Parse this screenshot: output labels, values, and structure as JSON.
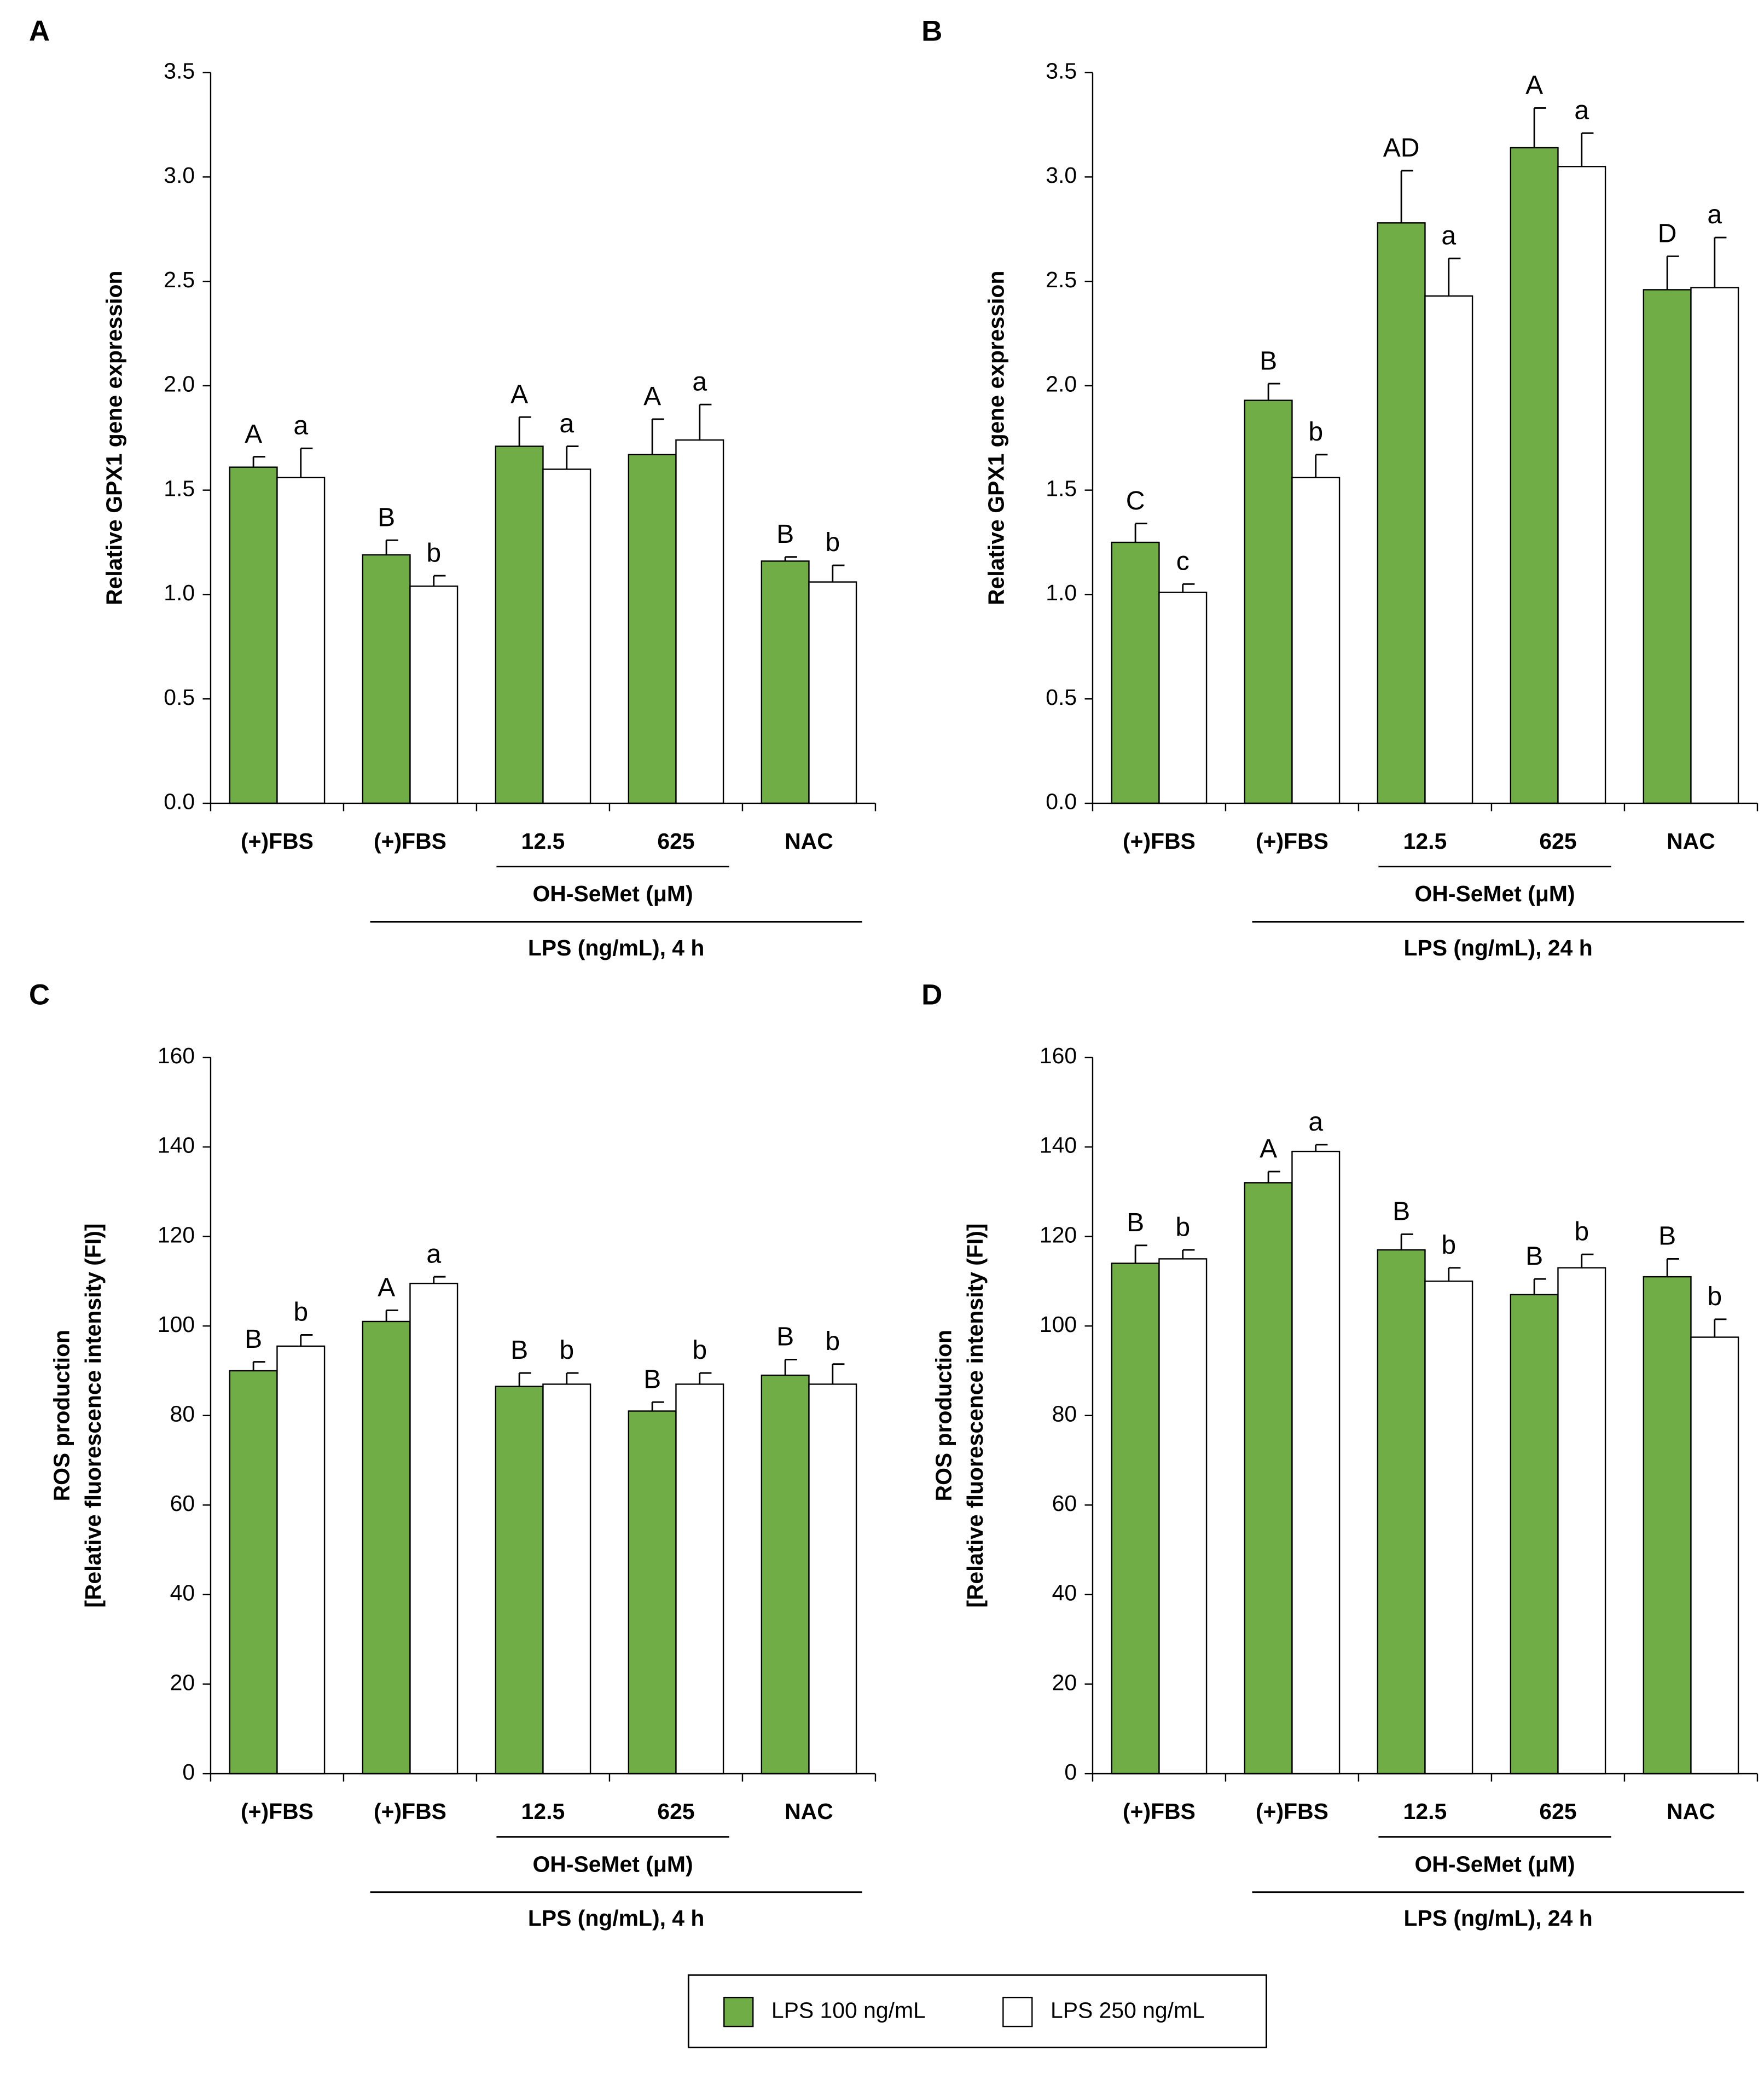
{
  "chart_data": [
    {
      "type": "bar",
      "panel": "A",
      "ylabel": [
        "Relative GPX1 gene expression"
      ],
      "categories": [
        "(+)FBS",
        "(+)FBS",
        "12.5",
        "625",
        "NAC"
      ],
      "group_label": "OH-SeMet (μM)",
      "treatment_label": "LPS (ng/mL), 4 h",
      "series": [
        {
          "name": "LPS 100 ng/mL",
          "color": "#70ad47",
          "values": [
            1.61,
            1.19,
            1.71,
            1.67,
            1.16
          ],
          "errors": [
            0.05,
            0.07,
            0.14,
            0.17,
            0.02
          ],
          "letters": [
            "A",
            "B",
            "A",
            "A",
            "B"
          ]
        },
        {
          "name": "LPS 250 ng/mL",
          "color": "#ffffff",
          "values": [
            1.56,
            1.04,
            1.6,
            1.74,
            1.06
          ],
          "errors": [
            0.14,
            0.05,
            0.11,
            0.17,
            0.08
          ],
          "letters": [
            "a",
            "b",
            "a",
            "a",
            "b"
          ]
        }
      ],
      "ylim": [
        0,
        3.5
      ],
      "yticks": [
        {
          "value": 0,
          "label": "0.0"
        },
        0.5,
        {
          "value": 1,
          "label": "1.0"
        },
        1.5,
        {
          "value": 2,
          "label": "2.0"
        },
        2.5,
        {
          "value": 3,
          "label": "3.0"
        },
        3.5
      ]
    },
    {
      "type": "bar",
      "panel": "B",
      "ylabel": [
        "Relative GPX1 gene expression"
      ],
      "categories": [
        "(+)FBS",
        "(+)FBS",
        "12.5",
        "625",
        "NAC"
      ],
      "group_label": "OH-SeMet (μM)",
      "treatment_label": "LPS (ng/mL), 24 h",
      "series": [
        {
          "name": "LPS 100 ng/mL",
          "color": "#70ad47",
          "values": [
            1.25,
            1.93,
            2.78,
            3.14,
            2.46
          ],
          "errors": [
            0.09,
            0.08,
            0.25,
            0.19,
            0.16
          ],
          "letters": [
            "C",
            "B",
            "AD",
            "A",
            "D"
          ]
        },
        {
          "name": "LPS 250 ng/mL",
          "color": "#ffffff",
          "values": [
            1.01,
            1.56,
            2.43,
            3.05,
            2.47
          ],
          "errors": [
            0.04,
            0.11,
            0.18,
            0.16,
            0.24
          ],
          "letters": [
            "c",
            "b",
            "a",
            "a",
            "a"
          ]
        }
      ],
      "ylim": [
        0,
        3.5
      ],
      "yticks": [
        {
          "value": 0,
          "label": "0.0"
        },
        0.5,
        {
          "value": 1,
          "label": "1.0"
        },
        1.5,
        {
          "value": 2,
          "label": "2.0"
        },
        2.5,
        {
          "value": 3,
          "label": "3.0"
        },
        3.5
      ]
    },
    {
      "type": "bar",
      "panel": "C",
      "ylabel": [
        "ROS production",
        "[Relative fluorescence intensity (FI)]"
      ],
      "categories": [
        "(+)FBS",
        "(+)FBS",
        "12.5",
        "625",
        "NAC"
      ],
      "group_label": "OH-SeMet (μM)",
      "treatment_label": "LPS (ng/mL), 4 h",
      "series": [
        {
          "name": "LPS 100 ng/mL",
          "color": "#70ad47",
          "values": [
            90,
            101,
            86.5,
            81,
            89
          ],
          "errors": [
            2,
            2.5,
            3,
            2,
            3.5
          ],
          "letters": [
            "B",
            "A",
            "B",
            "B",
            "B"
          ]
        },
        {
          "name": "LPS 250 ng/mL",
          "color": "#ffffff",
          "values": [
            95.5,
            109.5,
            87,
            87,
            87
          ],
          "errors": [
            2.5,
            1.5,
            2.5,
            2.5,
            4.5
          ],
          "letters": [
            "b",
            "a",
            "b",
            "b",
            "b"
          ]
        }
      ],
      "ylim": [
        0,
        160
      ],
      "yticks": [
        0,
        20,
        40,
        60,
        80,
        100,
        120,
        140,
        160
      ]
    },
    {
      "type": "bar",
      "panel": "D",
      "ylabel": [
        "ROS production",
        "[Relative fluorescence intensity (FI)]"
      ],
      "categories": [
        "(+)FBS",
        "(+)FBS",
        "12.5",
        "625",
        "NAC"
      ],
      "group_label": "OH-SeMet (μM)",
      "treatment_label": "LPS (ng/mL), 24 h",
      "series": [
        {
          "name": "LPS 100 ng/mL",
          "color": "#70ad47",
          "values": [
            114,
            132,
            117,
            107,
            111
          ],
          "errors": [
            4,
            2.5,
            3.5,
            3.5,
            4
          ],
          "letters": [
            "B",
            "A",
            "B",
            "B",
            "B"
          ]
        },
        {
          "name": "LPS 250 ng/mL",
          "color": "#ffffff",
          "values": [
            115,
            139,
            110,
            113,
            97.5
          ],
          "errors": [
            2,
            1.5,
            3,
            3,
            4
          ],
          "letters": [
            "b",
            "a",
            "b",
            "b",
            "b"
          ]
        }
      ],
      "ylim": [
        0,
        160
      ],
      "yticks": [
        0,
        20,
        40,
        60,
        80,
        100,
        120,
        140,
        160
      ]
    }
  ]
}
